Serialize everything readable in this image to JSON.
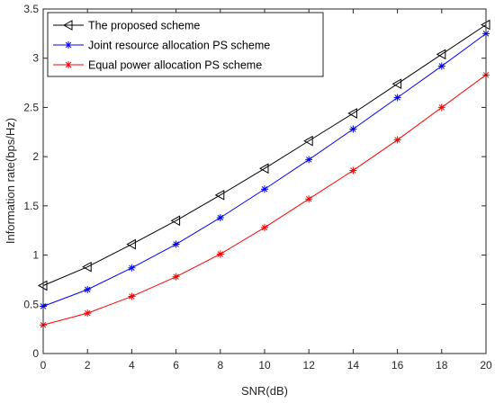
{
  "chart_data": {
    "type": "line",
    "title": "",
    "xlabel": "SNR(dB)",
    "ylabel": "Information rate(bps/Hz)",
    "xlim": [
      0,
      20
    ],
    "ylim": [
      0,
      3.5
    ],
    "xticks": [
      0,
      2,
      4,
      6,
      8,
      10,
      12,
      14,
      16,
      18,
      20
    ],
    "yticks": [
      0,
      0.5,
      1,
      1.5,
      2,
      2.5,
      3,
      3.5
    ],
    "grid": false,
    "legend_position": "top-left",
    "x": [
      0,
      2,
      4,
      6,
      8,
      10,
      12,
      14,
      16,
      18,
      20
    ],
    "series": [
      {
        "name": "The proposed scheme",
        "color": "#000000",
        "marker": "left-triangle",
        "values": [
          0.69,
          0.88,
          1.11,
          1.35,
          1.61,
          1.88,
          2.16,
          2.44,
          2.74,
          3.04,
          3.34
        ]
      },
      {
        "name": "Joint resource allocation PS scheme",
        "color": "#0000ff",
        "marker": "asterisk",
        "values": [
          0.48,
          0.65,
          0.87,
          1.11,
          1.38,
          1.67,
          1.97,
          2.28,
          2.6,
          2.92,
          3.25
        ]
      },
      {
        "name": "Equal power allocation PS scheme",
        "color": "#ff0000",
        "marker": "asterisk",
        "values": [
          0.29,
          0.41,
          0.58,
          0.78,
          1.01,
          1.28,
          1.57,
          1.86,
          2.17,
          2.5,
          2.83
        ]
      }
    ]
  }
}
